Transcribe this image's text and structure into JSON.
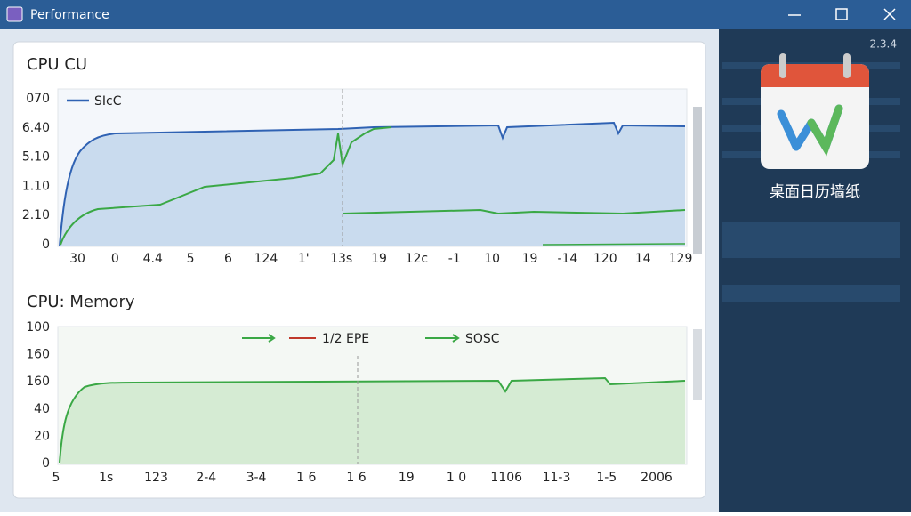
{
  "window": {
    "title": "Performance"
  },
  "cpu_panel": {
    "title": "CPU CU",
    "legend": [
      "SIcC"
    ],
    "y_labels": [
      "070",
      "6.40",
      "5.10",
      "1.10",
      "2.10",
      "0"
    ],
    "x_labels": [
      "30",
      "0",
      "4.4",
      "5",
      "6",
      "124",
      "1'",
      "13s",
      "19",
      "12c",
      "-1",
      "10",
      "19",
      "-14",
      "120",
      "14",
      "129"
    ]
  },
  "memory_panel": {
    "title": "CPU: Memory",
    "legend": [
      "1/2 EPE",
      "SOSC"
    ],
    "y_labels": [
      "100",
      "160",
      "160",
      "40",
      "20",
      "0"
    ],
    "x_labels": [
      "5",
      "1s",
      "123",
      "2-4",
      "3-4",
      "1 6",
      "1 6",
      "19",
      "1 0",
      "1106",
      "11-3",
      "1-5",
      "2006"
    ]
  },
  "desktop": {
    "version": "2.3.4",
    "app_label": "桌面日历墙纸"
  }
}
